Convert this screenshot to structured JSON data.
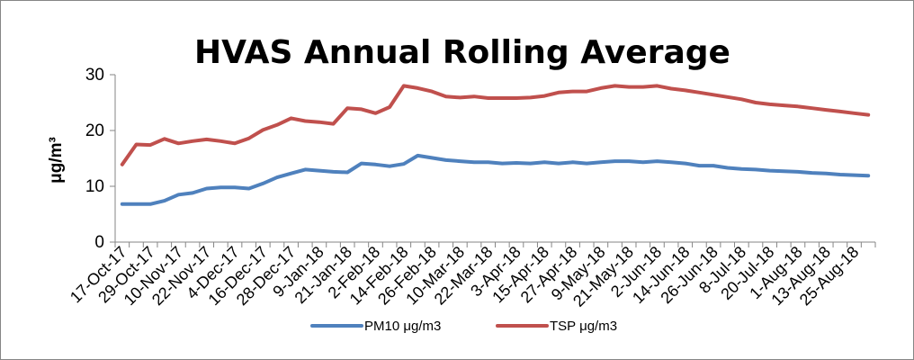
{
  "chart_data": {
    "type": "line",
    "title": "HVAS Annual Rolling Average",
    "xlabel": "",
    "ylabel": "μg/m³",
    "ylim": [
      0,
      30
    ],
    "yticks": [
      "0",
      "10",
      "20",
      "30"
    ],
    "grid": false,
    "legend_position": "bottom",
    "x_tick_labels": [
      "17-Oct-17",
      "29-Oct-17",
      "10-Nov-17",
      "22-Nov-17",
      "4-Dec-17",
      "16-Dec-17",
      "28-Dec-17",
      "9-Jan-18",
      "21-Jan-18",
      "2-Feb-18",
      "14-Feb-18",
      "26-Feb-18",
      "10-Mar-18",
      "22-Mar-18",
      "3-Apr-18",
      "15-Apr-18",
      "27-Apr-18",
      "9-May-18",
      "21-May-18",
      "2-Jun-18",
      "14-Jun-18",
      "26-Jun-18",
      "8-Jul-18",
      "20-Jul-18",
      "1-Aug-18",
      "13-Aug-18",
      "25-Aug-18"
    ],
    "x": [
      "17-Oct-17",
      "23-Oct-17",
      "29-Oct-17",
      "4-Nov-17",
      "10-Nov-17",
      "16-Nov-17",
      "22-Nov-17",
      "28-Nov-17",
      "4-Dec-17",
      "10-Dec-17",
      "16-Dec-17",
      "22-Dec-17",
      "28-Dec-17",
      "3-Jan-18",
      "9-Jan-18",
      "15-Jan-18",
      "21-Jan-18",
      "27-Jan-18",
      "2-Feb-18",
      "8-Feb-18",
      "14-Feb-18",
      "20-Feb-18",
      "26-Feb-18",
      "4-Mar-18",
      "10-Mar-18",
      "16-Mar-18",
      "22-Mar-18",
      "28-Mar-18",
      "3-Apr-18",
      "9-Apr-18",
      "15-Apr-18",
      "21-Apr-18",
      "27-Apr-18",
      "3-May-18",
      "9-May-18",
      "15-May-18",
      "21-May-18",
      "27-May-18",
      "2-Jun-18",
      "8-Jun-18",
      "14-Jun-18",
      "20-Jun-18",
      "26-Jun-18",
      "2-Jul-18",
      "8-Jul-18",
      "14-Jul-18",
      "20-Jul-18",
      "26-Jul-18",
      "1-Aug-18",
      "7-Aug-18",
      "13-Aug-18",
      "19-Aug-18",
      "25-Aug-18",
      "31-Aug-18"
    ],
    "series": [
      {
        "name": "PM10 μg/m3",
        "color": "#4F81BD",
        "values": [
          6.8,
          6.8,
          6.8,
          7.4,
          8.5,
          8.8,
          9.6,
          9.8,
          9.8,
          9.6,
          10.5,
          11.6,
          12.3,
          13.0,
          12.8,
          12.6,
          12.5,
          14.1,
          13.9,
          13.6,
          14.0,
          15.5,
          15.1,
          14.7,
          14.5,
          14.3,
          14.3,
          14.1,
          14.2,
          14.1,
          14.3,
          14.1,
          14.3,
          14.1,
          14.3,
          14.5,
          14.5,
          14.3,
          14.5,
          14.3,
          14.1,
          13.7,
          13.7,
          13.3,
          13.1,
          13.0,
          12.8,
          12.7,
          12.6,
          12.4,
          12.3,
          12.1,
          12.0,
          11.9
        ]
      },
      {
        "name": "TSP μg/m3",
        "color": "#C0504D",
        "values": [
          13.9,
          17.5,
          17.4,
          18.5,
          17.7,
          18.1,
          18.4,
          18.1,
          17.7,
          18.6,
          20.1,
          21.0,
          22.2,
          21.7,
          21.5,
          21.2,
          24.0,
          23.8,
          23.1,
          24.2,
          28.0,
          27.6,
          27.0,
          26.1,
          25.9,
          26.1,
          25.8,
          25.8,
          25.8,
          25.9,
          26.2,
          26.8,
          27.0,
          27.0,
          27.6,
          28.0,
          27.8,
          27.8,
          28.0,
          27.5,
          27.2,
          26.8,
          26.4,
          26.0,
          25.6,
          25.0,
          24.7,
          24.5,
          24.3,
          24.0,
          23.7,
          23.4,
          23.1,
          22.8
        ]
      }
    ]
  }
}
